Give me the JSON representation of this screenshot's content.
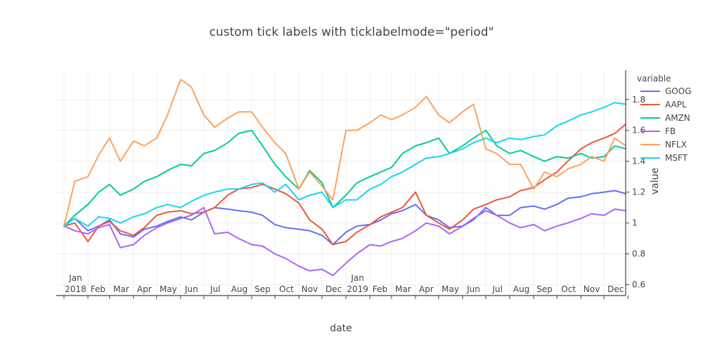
{
  "chart_data": {
    "type": "line",
    "title": "custom tick labels with ticklabelmode=\"period\"",
    "xlabel": "date",
    "ylabel": "value",
    "x_range": [
      "2017-12-22",
      "2019-12-29"
    ],
    "ylim": [
      0.53,
      1.99
    ],
    "yticks": [
      {
        "v": 0.6,
        "label": "0.6"
      },
      {
        "v": 0.8,
        "label": "0.8"
      },
      {
        "v": 1.0,
        "label": "1"
      },
      {
        "v": 1.2,
        "label": "1.2"
      },
      {
        "v": 1.4,
        "label": "1.4"
      },
      {
        "v": 1.6,
        "label": "1.6"
      },
      {
        "v": 1.8,
        "label": "1.8"
      }
    ],
    "x_periods": [
      {
        "start": "2018-01-01",
        "mid": "2018-01-16",
        "label": "2018",
        "year_label": "Jan"
      },
      {
        "start": "2018-02-01",
        "mid": "2018-02-14",
        "label": "Feb"
      },
      {
        "start": "2018-03-01",
        "mid": "2018-03-16",
        "label": "Mar"
      },
      {
        "start": "2018-04-01",
        "mid": "2018-04-15",
        "label": "Apr"
      },
      {
        "start": "2018-05-01",
        "mid": "2018-05-16",
        "label": "May"
      },
      {
        "start": "2018-06-01",
        "mid": "2018-06-15",
        "label": "Jun"
      },
      {
        "start": "2018-07-01",
        "mid": "2018-07-16",
        "label": "Jul"
      },
      {
        "start": "2018-08-01",
        "mid": "2018-08-16",
        "label": "Aug"
      },
      {
        "start": "2018-09-01",
        "mid": "2018-09-15",
        "label": "Sep"
      },
      {
        "start": "2018-10-01",
        "mid": "2018-10-16",
        "label": "Oct"
      },
      {
        "start": "2018-11-01",
        "mid": "2018-11-15",
        "label": "Nov"
      },
      {
        "start": "2018-12-01",
        "mid": "2018-12-16",
        "label": "Dec"
      },
      {
        "start": "2019-01-01",
        "mid": "2019-01-16",
        "label": "2019",
        "year_label": "Jan"
      },
      {
        "start": "2019-02-01",
        "mid": "2019-02-14",
        "label": "Feb"
      },
      {
        "start": "2019-03-01",
        "mid": "2019-03-16",
        "label": "Mar"
      },
      {
        "start": "2019-04-01",
        "mid": "2019-04-15",
        "label": "Apr"
      },
      {
        "start": "2019-05-01",
        "mid": "2019-05-16",
        "label": "May"
      },
      {
        "start": "2019-06-01",
        "mid": "2019-06-15",
        "label": "Jun"
      },
      {
        "start": "2019-07-01",
        "mid": "2019-07-16",
        "label": "Jul"
      },
      {
        "start": "2019-08-01",
        "mid": "2019-08-16",
        "label": "Aug"
      },
      {
        "start": "2019-09-01",
        "mid": "2019-09-15",
        "label": "Sep"
      },
      {
        "start": "2019-10-01",
        "mid": "2019-10-16",
        "label": "Oct"
      },
      {
        "start": "2019-11-01",
        "mid": "2019-11-15",
        "label": "Nov"
      },
      {
        "start": "2019-12-01",
        "mid": "2019-12-16",
        "label": "Dec"
      }
    ],
    "x_end": "2020-01-01",
    "grid": true,
    "legend": {
      "title": "variable",
      "position": "right"
    },
    "series": [
      {
        "name": "GOOG",
        "color": "#636efa",
        "x": [
          "2018-01-01",
          "2018-01-15",
          "2018-02-01",
          "2018-02-15",
          "2018-03-01",
          "2018-03-15",
          "2018-04-01",
          "2018-04-15",
          "2018-05-01",
          "2018-05-15",
          "2018-06-01",
          "2018-06-15",
          "2018-07-01",
          "2018-07-15",
          "2018-08-01",
          "2018-08-15",
          "2018-09-01",
          "2018-09-15",
          "2018-10-01",
          "2018-10-15",
          "2018-11-01",
          "2018-11-15",
          "2018-12-01",
          "2018-12-15",
          "2019-01-01",
          "2019-01-15",
          "2019-02-01",
          "2019-02-15",
          "2019-03-01",
          "2019-03-15",
          "2019-04-01",
          "2019-04-15",
          "2019-05-01",
          "2019-05-15",
          "2019-06-01",
          "2019-06-15",
          "2019-07-01",
          "2019-07-15",
          "2019-08-01",
          "2019-08-15",
          "2019-09-01",
          "2019-09-15",
          "2019-10-01",
          "2019-10-15",
          "2019-11-01",
          "2019-11-15",
          "2019-12-01",
          "2019-12-15",
          "2019-12-29"
        ],
        "y": [
          0.98,
          1.03,
          0.95,
          0.98,
          1.02,
          0.93,
          0.91,
          0.96,
          0.98,
          1.01,
          1.04,
          1.02,
          1.07,
          1.1,
          1.09,
          1.08,
          1.07,
          1.05,
          0.99,
          0.97,
          0.96,
          0.95,
          0.92,
          0.86,
          0.94,
          0.98,
          0.99,
          1.02,
          1.06,
          1.08,
          1.12,
          1.05,
          1.02,
          0.97,
          0.98,
          1.02,
          1.1,
          1.05,
          1.05,
          1.1,
          1.11,
          1.09,
          1.12,
          1.16,
          1.17,
          1.19,
          1.2,
          1.21,
          1.19
        ]
      },
      {
        "name": "AAPL",
        "color": "#ef553b",
        "x": [
          "2018-01-01",
          "2018-01-15",
          "2018-02-01",
          "2018-02-15",
          "2018-03-01",
          "2018-03-15",
          "2018-04-01",
          "2018-04-15",
          "2018-05-01",
          "2018-05-15",
          "2018-06-01",
          "2018-06-15",
          "2018-07-01",
          "2018-07-15",
          "2018-08-01",
          "2018-08-15",
          "2018-09-01",
          "2018-09-15",
          "2018-10-01",
          "2018-10-15",
          "2018-11-01",
          "2018-11-15",
          "2018-12-01",
          "2018-12-15",
          "2019-01-01",
          "2019-01-15",
          "2019-02-01",
          "2019-02-15",
          "2019-03-01",
          "2019-03-15",
          "2019-04-01",
          "2019-04-15",
          "2019-05-01",
          "2019-05-15",
          "2019-06-01",
          "2019-06-15",
          "2019-07-01",
          "2019-07-15",
          "2019-08-01",
          "2019-08-15",
          "2019-09-01",
          "2019-09-15",
          "2019-10-01",
          "2019-10-15",
          "2019-11-01",
          "2019-11-15",
          "2019-12-01",
          "2019-12-15",
          "2019-12-29"
        ],
        "y": [
          0.98,
          1.0,
          0.88,
          0.98,
          1.01,
          0.95,
          0.92,
          0.97,
          1.05,
          1.07,
          1.08,
          1.06,
          1.07,
          1.1,
          1.18,
          1.22,
          1.23,
          1.25,
          1.22,
          1.19,
          1.13,
          1.02,
          0.96,
          0.86,
          0.88,
          0.94,
          0.99,
          1.04,
          1.07,
          1.1,
          1.2,
          1.05,
          1.0,
          0.96,
          1.02,
          1.09,
          1.12,
          1.15,
          1.17,
          1.21,
          1.23,
          1.28,
          1.33,
          1.4,
          1.48,
          1.52,
          1.55,
          1.58,
          1.64
        ]
      },
      {
        "name": "AMZN",
        "color": "#00cc96",
        "x": [
          "2018-01-01",
          "2018-01-15",
          "2018-02-01",
          "2018-02-15",
          "2018-03-01",
          "2018-03-15",
          "2018-04-01",
          "2018-04-15",
          "2018-05-01",
          "2018-05-15",
          "2018-06-01",
          "2018-06-15",
          "2018-07-01",
          "2018-07-15",
          "2018-08-01",
          "2018-08-15",
          "2018-09-01",
          "2018-09-15",
          "2018-10-01",
          "2018-10-15",
          "2018-11-01",
          "2018-11-15",
          "2018-12-01",
          "2018-12-15",
          "2019-01-01",
          "2019-01-15",
          "2019-02-01",
          "2019-02-15",
          "2019-03-01",
          "2019-03-15",
          "2019-04-01",
          "2019-04-15",
          "2019-05-01",
          "2019-05-15",
          "2019-06-01",
          "2019-06-15",
          "2019-07-01",
          "2019-07-15",
          "2019-08-01",
          "2019-08-15",
          "2019-09-01",
          "2019-09-15",
          "2019-10-01",
          "2019-10-15",
          "2019-11-01",
          "2019-11-15",
          "2019-12-01",
          "2019-12-15",
          "2019-12-29"
        ],
        "y": [
          0.98,
          1.05,
          1.12,
          1.2,
          1.25,
          1.18,
          1.22,
          1.27,
          1.3,
          1.34,
          1.38,
          1.37,
          1.45,
          1.47,
          1.52,
          1.58,
          1.6,
          1.5,
          1.38,
          1.3,
          1.22,
          1.34,
          1.26,
          1.1,
          1.18,
          1.26,
          1.3,
          1.33,
          1.36,
          1.45,
          1.5,
          1.52,
          1.55,
          1.45,
          1.5,
          1.55,
          1.6,
          1.5,
          1.45,
          1.47,
          1.43,
          1.4,
          1.43,
          1.42,
          1.45,
          1.42,
          1.43,
          1.5,
          1.48
        ]
      },
      {
        "name": "FB",
        "color": "#ab63fa",
        "x": [
          "2018-01-01",
          "2018-01-15",
          "2018-02-01",
          "2018-02-15",
          "2018-03-01",
          "2018-03-15",
          "2018-04-01",
          "2018-04-15",
          "2018-05-01",
          "2018-05-15",
          "2018-06-01",
          "2018-06-15",
          "2018-07-01",
          "2018-07-15",
          "2018-08-01",
          "2018-08-15",
          "2018-09-01",
          "2018-09-15",
          "2018-10-01",
          "2018-10-15",
          "2018-11-01",
          "2018-11-15",
          "2018-12-01",
          "2018-12-15",
          "2019-01-01",
          "2019-01-15",
          "2019-02-01",
          "2019-02-15",
          "2019-03-01",
          "2019-03-15",
          "2019-04-01",
          "2019-04-15",
          "2019-05-01",
          "2019-05-15",
          "2019-06-01",
          "2019-06-15",
          "2019-07-01",
          "2019-07-15",
          "2019-08-01",
          "2019-08-15",
          "2019-09-01",
          "2019-09-15",
          "2019-10-01",
          "2019-10-15",
          "2019-11-01",
          "2019-11-15",
          "2019-12-01",
          "2019-12-15",
          "2019-12-29"
        ],
        "y": [
          0.98,
          0.95,
          0.93,
          0.97,
          0.99,
          0.84,
          0.86,
          0.92,
          0.97,
          1.0,
          1.03,
          1.05,
          1.1,
          0.93,
          0.94,
          0.9,
          0.86,
          0.85,
          0.8,
          0.77,
          0.72,
          0.69,
          0.7,
          0.66,
          0.74,
          0.8,
          0.86,
          0.85,
          0.88,
          0.9,
          0.95,
          1.0,
          0.98,
          0.93,
          0.98,
          1.03,
          1.08,
          1.05,
          1.0,
          0.97,
          0.99,
          0.95,
          0.98,
          1.0,
          1.03,
          1.06,
          1.05,
          1.09,
          1.08
        ]
      },
      {
        "name": "NFLX",
        "color": "#ffa15a",
        "x": [
          "2018-01-01",
          "2018-01-15",
          "2018-02-01",
          "2018-02-15",
          "2018-03-01",
          "2018-03-15",
          "2018-04-01",
          "2018-04-15",
          "2018-05-01",
          "2018-05-15",
          "2018-06-01",
          "2018-06-15",
          "2018-07-01",
          "2018-07-15",
          "2018-08-01",
          "2018-08-15",
          "2018-09-01",
          "2018-09-15",
          "2018-10-01",
          "2018-10-15",
          "2018-11-01",
          "2018-11-15",
          "2018-12-01",
          "2018-12-15",
          "2019-01-01",
          "2019-01-15",
          "2019-02-01",
          "2019-02-15",
          "2019-03-01",
          "2019-03-15",
          "2019-04-01",
          "2019-04-15",
          "2019-05-01",
          "2019-05-15",
          "2019-06-01",
          "2019-06-15",
          "2019-07-01",
          "2019-07-15",
          "2019-08-01",
          "2019-08-15",
          "2019-09-01",
          "2019-09-15",
          "2019-10-01",
          "2019-10-15",
          "2019-11-01",
          "2019-11-15",
          "2019-12-01",
          "2019-12-15",
          "2019-12-29"
        ],
        "y": [
          0.98,
          1.27,
          1.3,
          1.44,
          1.55,
          1.4,
          1.53,
          1.5,
          1.55,
          1.7,
          1.93,
          1.88,
          1.7,
          1.62,
          1.68,
          1.72,
          1.72,
          1.62,
          1.52,
          1.45,
          1.22,
          1.33,
          1.24,
          1.15,
          1.6,
          1.6,
          1.65,
          1.7,
          1.67,
          1.7,
          1.75,
          1.82,
          1.7,
          1.65,
          1.72,
          1.77,
          1.48,
          1.45,
          1.38,
          1.38,
          1.22,
          1.33,
          1.3,
          1.35,
          1.38,
          1.43,
          1.4,
          1.55,
          1.5
        ]
      },
      {
        "name": "MSFT",
        "color": "#19d3f3",
        "x": [
          "2018-01-01",
          "2018-01-15",
          "2018-02-01",
          "2018-02-15",
          "2018-03-01",
          "2018-03-15",
          "2018-04-01",
          "2018-04-15",
          "2018-05-01",
          "2018-05-15",
          "2018-06-01",
          "2018-06-15",
          "2018-07-01",
          "2018-07-15",
          "2018-08-01",
          "2018-08-15",
          "2018-09-01",
          "2018-09-15",
          "2018-10-01",
          "2018-10-15",
          "2018-11-01",
          "2018-11-15",
          "2018-12-01",
          "2018-12-15",
          "2019-01-01",
          "2019-01-15",
          "2019-02-01",
          "2019-02-15",
          "2019-03-01",
          "2019-03-15",
          "2019-04-01",
          "2019-04-15",
          "2019-05-01",
          "2019-05-15",
          "2019-06-01",
          "2019-06-15",
          "2019-07-01",
          "2019-07-15",
          "2019-08-01",
          "2019-08-15",
          "2019-09-01",
          "2019-09-15",
          "2019-10-01",
          "2019-10-15",
          "2019-11-01",
          "2019-11-15",
          "2019-12-01",
          "2019-12-15",
          "2019-12-29"
        ],
        "y": [
          0.98,
          1.03,
          0.98,
          1.04,
          1.03,
          1.0,
          1.04,
          1.06,
          1.1,
          1.12,
          1.1,
          1.14,
          1.18,
          1.2,
          1.22,
          1.22,
          1.25,
          1.26,
          1.2,
          1.25,
          1.15,
          1.18,
          1.2,
          1.1,
          1.15,
          1.15,
          1.22,
          1.25,
          1.3,
          1.33,
          1.38,
          1.42,
          1.43,
          1.45,
          1.48,
          1.52,
          1.55,
          1.52,
          1.55,
          1.54,
          1.56,
          1.57,
          1.63,
          1.66,
          1.7,
          1.72,
          1.75,
          1.78,
          1.77
        ]
      }
    ]
  }
}
